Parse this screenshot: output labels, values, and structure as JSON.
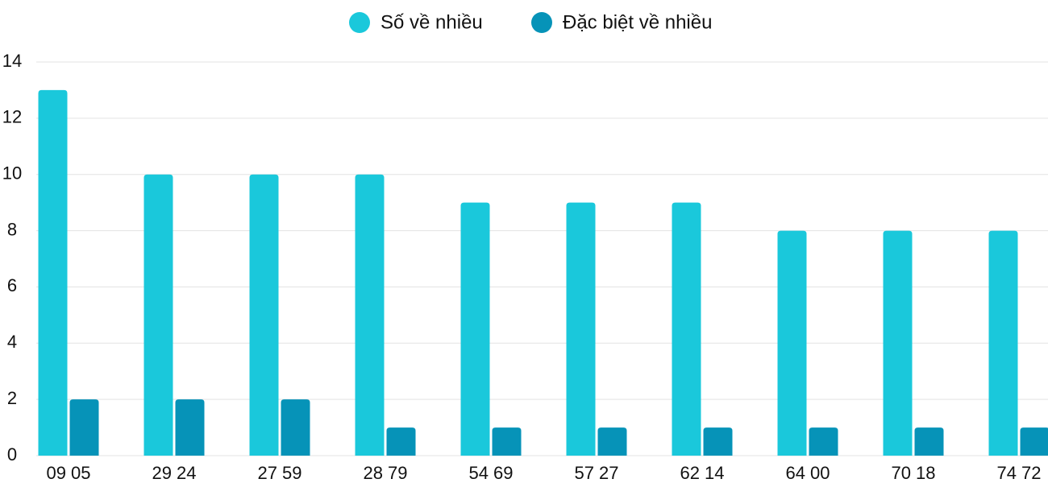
{
  "chart_data": {
    "type": "bar",
    "categories": [
      "09 05",
      "29 24",
      "27 59",
      "28 79",
      "54 69",
      "57 27",
      "62 14",
      "64 00",
      "70 18",
      "74 72"
    ],
    "series": [
      {
        "name": "Số về nhiều",
        "color": "#1ac8db",
        "values": [
          13,
          10,
          10,
          10,
          9,
          9,
          9,
          8,
          8,
          8
        ]
      },
      {
        "name": "Đặc biệt về nhiều",
        "color": "#0693b8",
        "values": [
          2,
          2,
          2,
          1,
          1,
          1,
          1,
          1,
          1,
          1
        ]
      }
    ],
    "ylim": [
      0,
      14
    ],
    "yticks": [
      0,
      2,
      4,
      6,
      8,
      10,
      12,
      14
    ],
    "grid": true,
    "legend": "top"
  }
}
